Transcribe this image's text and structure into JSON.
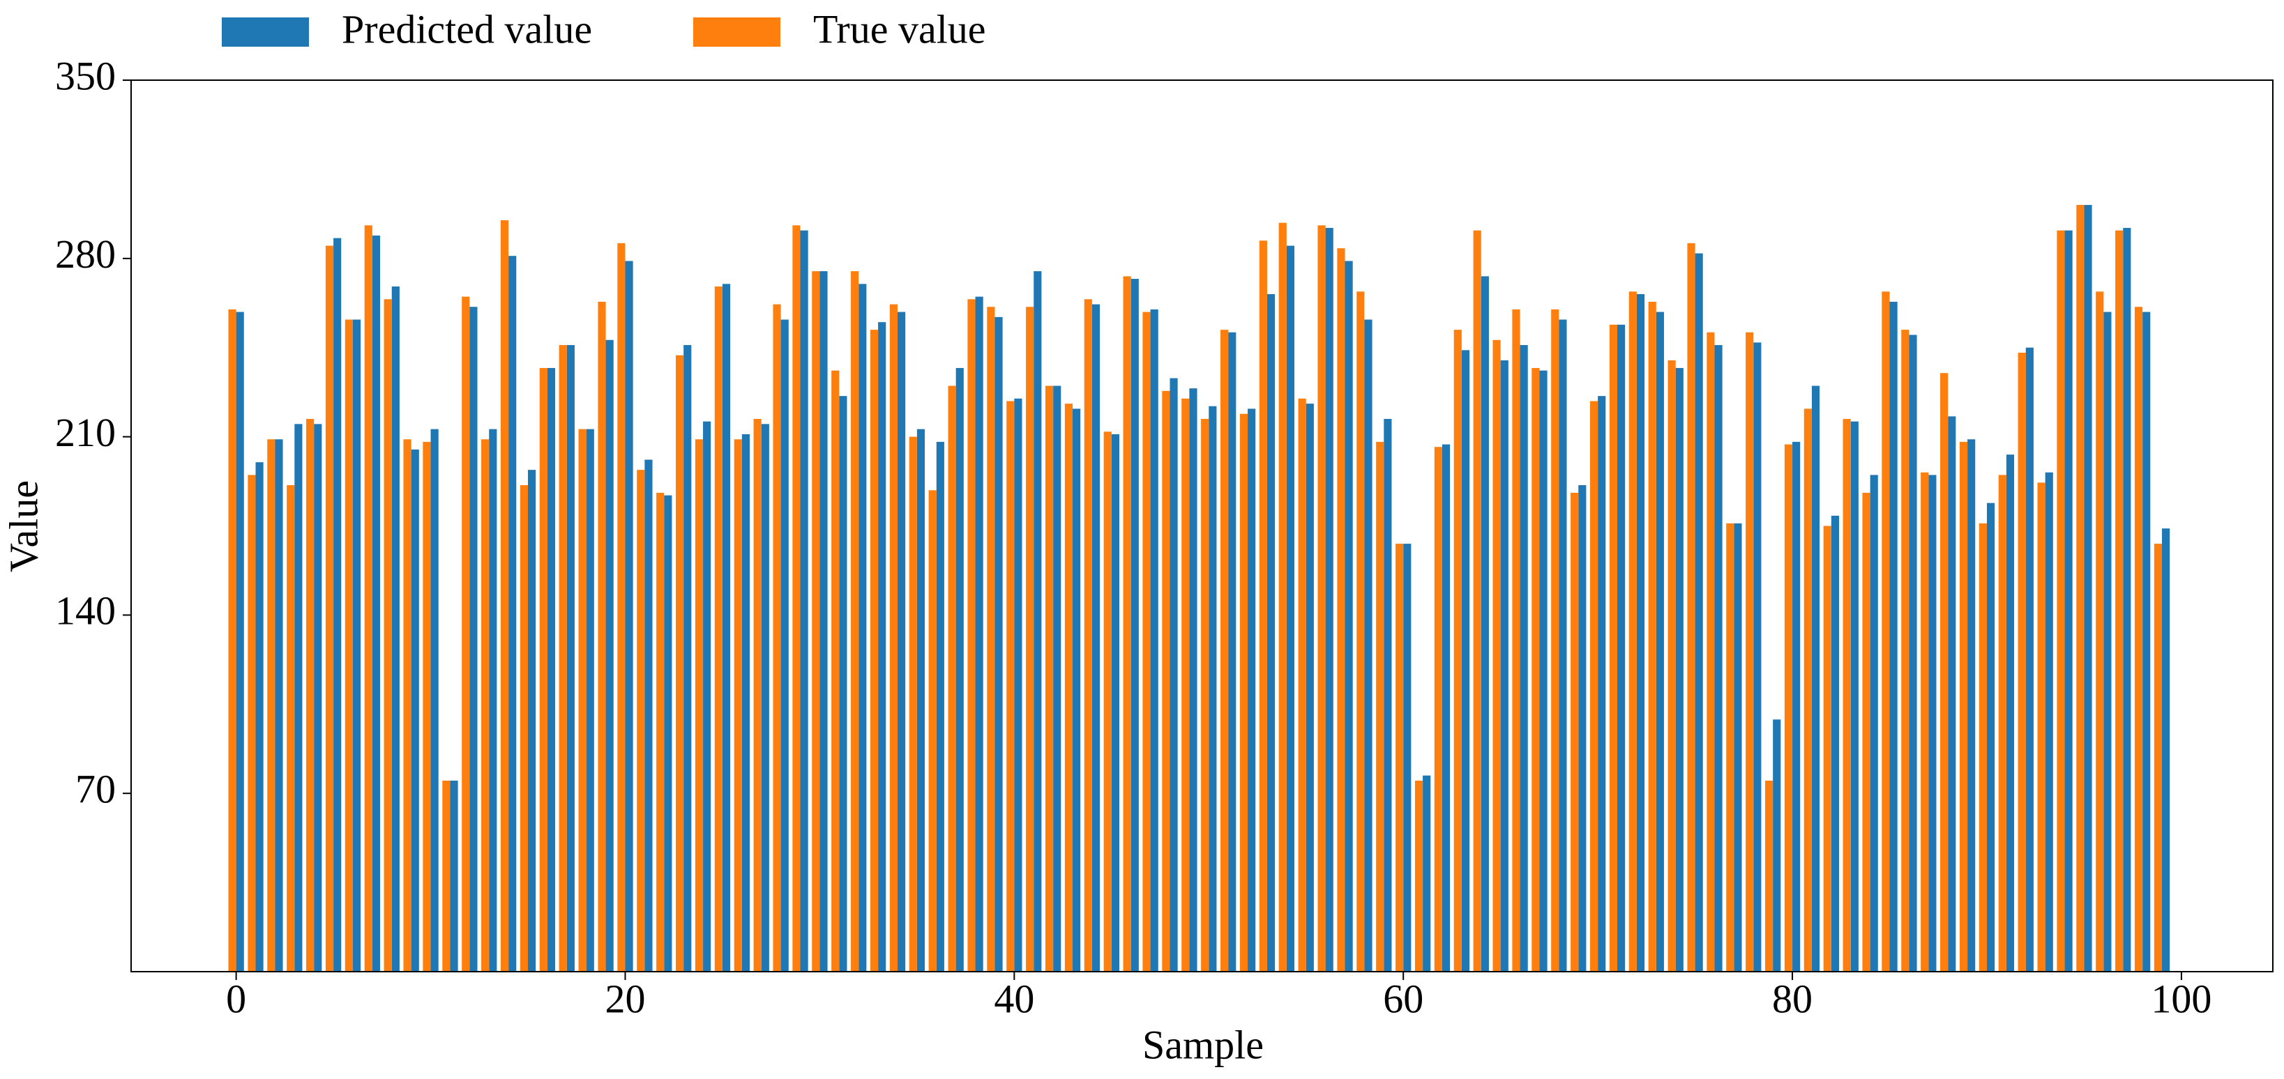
{
  "chart_data": {
    "type": "bar",
    "xlabel": "Sample",
    "ylabel": "Value",
    "x": [
      0,
      1,
      2,
      3,
      4,
      5,
      6,
      7,
      8,
      9,
      10,
      11,
      12,
      13,
      14,
      15,
      16,
      17,
      18,
      19,
      20,
      21,
      22,
      23,
      24,
      25,
      26,
      27,
      28,
      29,
      30,
      31,
      32,
      33,
      34,
      35,
      36,
      37,
      38,
      39,
      40,
      41,
      42,
      43,
      44,
      45,
      46,
      47,
      48,
      49,
      50,
      51,
      52,
      53,
      54,
      55,
      56,
      57,
      58,
      59,
      60,
      61,
      62,
      63,
      64,
      65,
      66,
      67,
      68,
      69,
      70,
      71,
      72,
      73,
      74,
      75,
      76,
      77,
      78,
      79,
      80,
      81,
      82,
      83,
      84,
      85,
      86,
      87,
      88,
      89,
      90,
      91,
      92,
      93,
      94,
      95,
      96,
      97,
      98,
      99
    ],
    "series": [
      {
        "name": "Predicted value",
        "color": "#1f77b4",
        "values": [
          259,
          200,
          209,
          215,
          215,
          288,
          256,
          289,
          269,
          205,
          213,
          75,
          261,
          213,
          281,
          197,
          237,
          246,
          213,
          248,
          279,
          201,
          187,
          246,
          216,
          270,
          211,
          215,
          256,
          291,
          275,
          226,
          270,
          255,
          259,
          213,
          208,
          237,
          265,
          257,
          225,
          275,
          230,
          221,
          262,
          211,
          272,
          260,
          233,
          229,
          222,
          251,
          221,
          266,
          285,
          223,
          292,
          279,
          256,
          217,
          168,
          77,
          207,
          244,
          273,
          240,
          246,
          236,
          256,
          191,
          226,
          254,
          266,
          259,
          237,
          282,
          246,
          176,
          247,
          99,
          208,
          230,
          179,
          216,
          195,
          263,
          250,
          195,
          218,
          209,
          184,
          203,
          245,
          196,
          291,
          301,
          259,
          292,
          259,
          174
        ]
      },
      {
        "name": "True value",
        "color": "#ff7f0e",
        "values": [
          260,
          195,
          209,
          191,
          217,
          285,
          256,
          293,
          264,
          209,
          208,
          75,
          265,
          209,
          295,
          191,
          237,
          246,
          213,
          263,
          286,
          197,
          188,
          242,
          209,
          269,
          209,
          217,
          262,
          293,
          275,
          236,
          275,
          252,
          262,
          210,
          189,
          230,
          264,
          261,
          224,
          261,
          230,
          223,
          264,
          212,
          273,
          259,
          228,
          225,
          217,
          252,
          219,
          287,
          294,
          225,
          293,
          284,
          267,
          208,
          168,
          75,
          206,
          252,
          291,
          248,
          260,
          237,
          260,
          188,
          224,
          254,
          267,
          263,
          240,
          286,
          251,
          176,
          251,
          75,
          207,
          221,
          175,
          217,
          188,
          267,
          252,
          196,
          235,
          208,
          176,
          195,
          243,
          192,
          291,
          301,
          267,
          291,
          261,
          168
        ]
      }
    ],
    "xlim": [
      -5.4,
      104.7
    ],
    "xticks": [
      0,
      20,
      40,
      60,
      80,
      100
    ],
    "ylim": [
      0,
      350
    ],
    "yticks": [
      70,
      140,
      210,
      280,
      350
    ],
    "legend": "top-left-outside"
  }
}
